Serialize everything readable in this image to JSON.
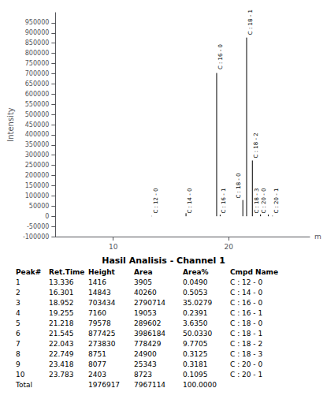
{
  "chart_data": {
    "type": "stem",
    "title": "Hasil Analisis - Channel 1",
    "xlabel": "m",
    "ylabel": "Intensity",
    "x": [
      13.336,
      16.301,
      18.952,
      19.255,
      21.218,
      21.545,
      22.043,
      22.749,
      23.418,
      23.783
    ],
    "values": [
      1416,
      14843,
      703434,
      7160,
      79578,
      877425,
      273830,
      8751,
      8077,
      2403
    ],
    "color": "#000000",
    "xlim": [
      5,
      27
    ],
    "ylim": [
      -100000,
      1000000
    ],
    "xticks": [
      10,
      20
    ],
    "yticks": [
      -100000,
      -50000,
      0,
      50000,
      100000,
      150000,
      200000,
      250000,
      300000,
      350000,
      400000,
      450000,
      500000,
      550000,
      600000,
      650000,
      700000,
      750000,
      800000,
      850000,
      900000,
      950000
    ],
    "grid": false,
    "annotations": [
      {
        "x": 13.336,
        "y": 8000,
        "text": "C : 12 - 0"
      },
      {
        "x": 16.301,
        "y": 8000,
        "text": "C : 14 - 0"
      },
      {
        "x": 18.952,
        "y": 715000,
        "text": "C : 16 - 0"
      },
      {
        "x": 19.255,
        "y": 8000,
        "text": "C : 16 - 1"
      },
      {
        "x": 21.218,
        "y": 82000,
        "text": "C : 18 - 0"
      },
      {
        "x": 21.545,
        "y": 885000,
        "text": "C : 18 - 1"
      },
      {
        "x": 22.043,
        "y": 280000,
        "text": "C : 18 - 2"
      },
      {
        "x": 22.749,
        "y": 8000,
        "text": "C : 18 - 3"
      },
      {
        "x": 23.418,
        "y": 8000,
        "text": "C : 20 - 0"
      },
      {
        "x": 23.783,
        "y": 8000,
        "text": "C : 20 - 1"
      }
    ],
    "table": {
      "headers": [
        "Peak#",
        "Ret.Time",
        "Height",
        "Area",
        "Area%",
        "Cmpd Name"
      ],
      "rows": [
        [
          "1",
          "13.336",
          "1416",
          "3905",
          "0.0490",
          "C : 12 - 0"
        ],
        [
          "2",
          "16.301",
          "14843",
          "40260",
          "0.5053",
          "C : 14 - 0"
        ],
        [
          "3",
          "18.952",
          "703434",
          "2790714",
          "35.0279",
          "C : 16 - 0"
        ],
        [
          "4",
          "19.255",
          "7160",
          "19053",
          "0.2391",
          "C : 16 - 1"
        ],
        [
          "5",
          "21.218",
          "79578",
          "289602",
          "3.6350",
          "C : 18 - 0"
        ],
        [
          "6",
          "21.545",
          "877425",
          "3986184",
          "50.0330",
          "C : 18 - 1"
        ],
        [
          "7",
          "22.043",
          "273830",
          "778429",
          "9.7705",
          "C : 18 - 2"
        ],
        [
          "8",
          "22.749",
          "8751",
          "24900",
          "0.3125",
          "C : 18 - 3"
        ],
        [
          "9",
          "23.418",
          "8077",
          "25343",
          "0.3181",
          "C : 20 - 0"
        ],
        [
          "10",
          "23.783",
          "2403",
          "8723",
          "0.1095",
          "C : 20 - 1"
        ],
        [
          "Total",
          null,
          "1976917",
          "7967114",
          "100.0000",
          null
        ]
      ]
    }
  }
}
